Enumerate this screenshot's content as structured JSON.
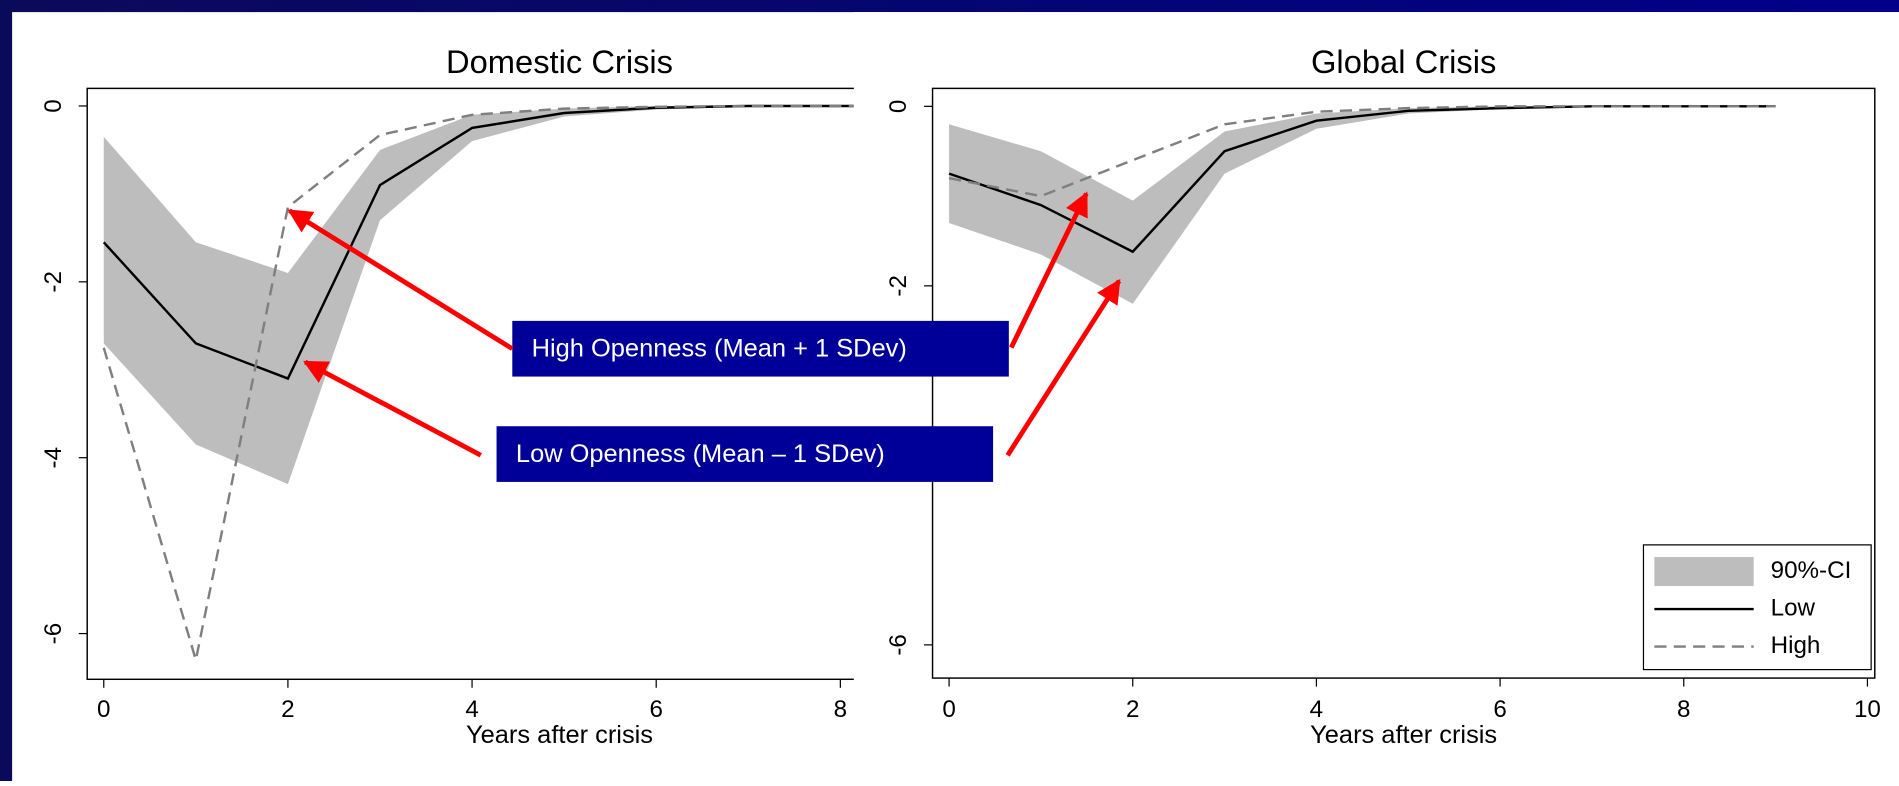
{
  "chart_data": [
    {
      "type": "line",
      "title": "Domestic Crisis",
      "xlabel": "Years after crisis",
      "x": [
        0,
        1,
        2,
        3,
        4,
        5,
        6,
        7,
        8,
        9
      ],
      "xlim": [
        -0.18,
        10.08
      ],
      "xticks": [
        0,
        2,
        4,
        6,
        8
      ],
      "ylim": [
        -6.52,
        0.2
      ],
      "yticks": [
        0,
        -2,
        -4,
        -6
      ],
      "series": [
        {
          "kind": "band",
          "color": "#bdbdbd",
          "upper": [
            -0.35,
            -1.55,
            -1.9,
            -0.5,
            -0.1,
            -0.03,
            0,
            0,
            0,
            0
          ],
          "lower": [
            -2.7,
            -3.85,
            -4.3,
            -1.3,
            -0.4,
            -0.12,
            -0.04,
            -0.01,
            0,
            0
          ]
        },
        {
          "kind": "solid",
          "color": "#000000",
          "values": [
            -1.55,
            -2.7,
            -3.1,
            -0.9,
            -0.25,
            -0.08,
            -0.02,
            0,
            0,
            0
          ]
        },
        {
          "kind": "dashed",
          "color": "#7f7f7f",
          "values": [
            -2.75,
            -6.3,
            -1.15,
            -0.33,
            -0.1,
            -0.03,
            -0.01,
            0,
            0,
            0
          ]
        }
      ]
    },
    {
      "type": "line",
      "title": "Global Crisis",
      "xlabel": "Years after crisis",
      "x": [
        0,
        1,
        2,
        3,
        4,
        5,
        6,
        7,
        8,
        9
      ],
      "xlim": [
        -0.18,
        10.08
      ],
      "xticks": [
        0,
        2,
        4,
        6,
        8,
        10
      ],
      "ylim": [
        -6.37,
        0.2
      ],
      "yticks": [
        0,
        -2,
        -4,
        -6
      ],
      "legend": "lower right",
      "series": [
        {
          "kind": "band",
          "name": "90%-CI",
          "color": "#bdbdbd",
          "upper": [
            -0.2,
            -0.5,
            -1.05,
            -0.28,
            -0.08,
            -0.02,
            0,
            0,
            0,
            0
          ],
          "lower": [
            -1.3,
            -1.65,
            -2.2,
            -0.75,
            -0.25,
            -0.08,
            -0.03,
            -0.01,
            0,
            0
          ]
        },
        {
          "kind": "solid",
          "name": "Low",
          "color": "#000000",
          "values": [
            -0.75,
            -1.1,
            -1.62,
            -0.5,
            -0.16,
            -0.05,
            -0.02,
            0,
            0,
            0
          ]
        },
        {
          "kind": "dashed",
          "name": "High",
          "color": "#7f7f7f",
          "values": [
            -0.8,
            -1.0,
            -0.6,
            -0.2,
            -0.06,
            -0.02,
            0,
            0,
            0,
            0
          ]
        }
      ]
    }
  ],
  "annotations": [
    "High Openness (Mean + 1 SDev)",
    "Low Openness (Mean – 1 SDev)"
  ]
}
